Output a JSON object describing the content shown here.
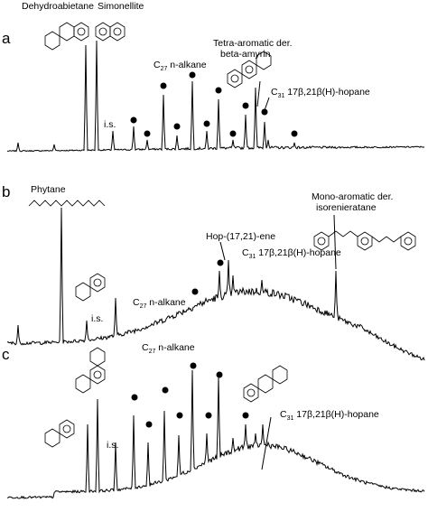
{
  "panels": [
    {
      "label": "a",
      "annotations": [
        "Dehydroabietane",
        "Simonellite",
        "Tetra-aromatic der.",
        "beta-amyrin",
        "i.s."
      ],
      "alkane": {
        "prefix": "C",
        "sub": "27",
        "suffix": " n-alkane"
      },
      "hopane": {
        "prefix": "C",
        "sub": "31",
        "suffix": " 17β,21β(H)-hopane"
      }
    },
    {
      "label": "b",
      "annotations": [
        "Phytane",
        "i.s.",
        "Hop-(17,21)-ene",
        "Mono-aromatic der.",
        "isorenieratane"
      ],
      "alkane": {
        "prefix": "C",
        "sub": "27",
        "suffix": " n-alkane"
      },
      "hopane": {
        "prefix": "C",
        "sub": "31",
        "suffix": " 17β,21β(H)-hopane"
      }
    },
    {
      "label": "c",
      "annotations": [
        "i.s."
      ],
      "alkane": {
        "prefix": "C",
        "sub": "27",
        "suffix": " n-alkane"
      },
      "hopane": {
        "prefix": "C",
        "sub": "31",
        "suffix": " 17β,21β(H)-hopane"
      }
    }
  ]
}
